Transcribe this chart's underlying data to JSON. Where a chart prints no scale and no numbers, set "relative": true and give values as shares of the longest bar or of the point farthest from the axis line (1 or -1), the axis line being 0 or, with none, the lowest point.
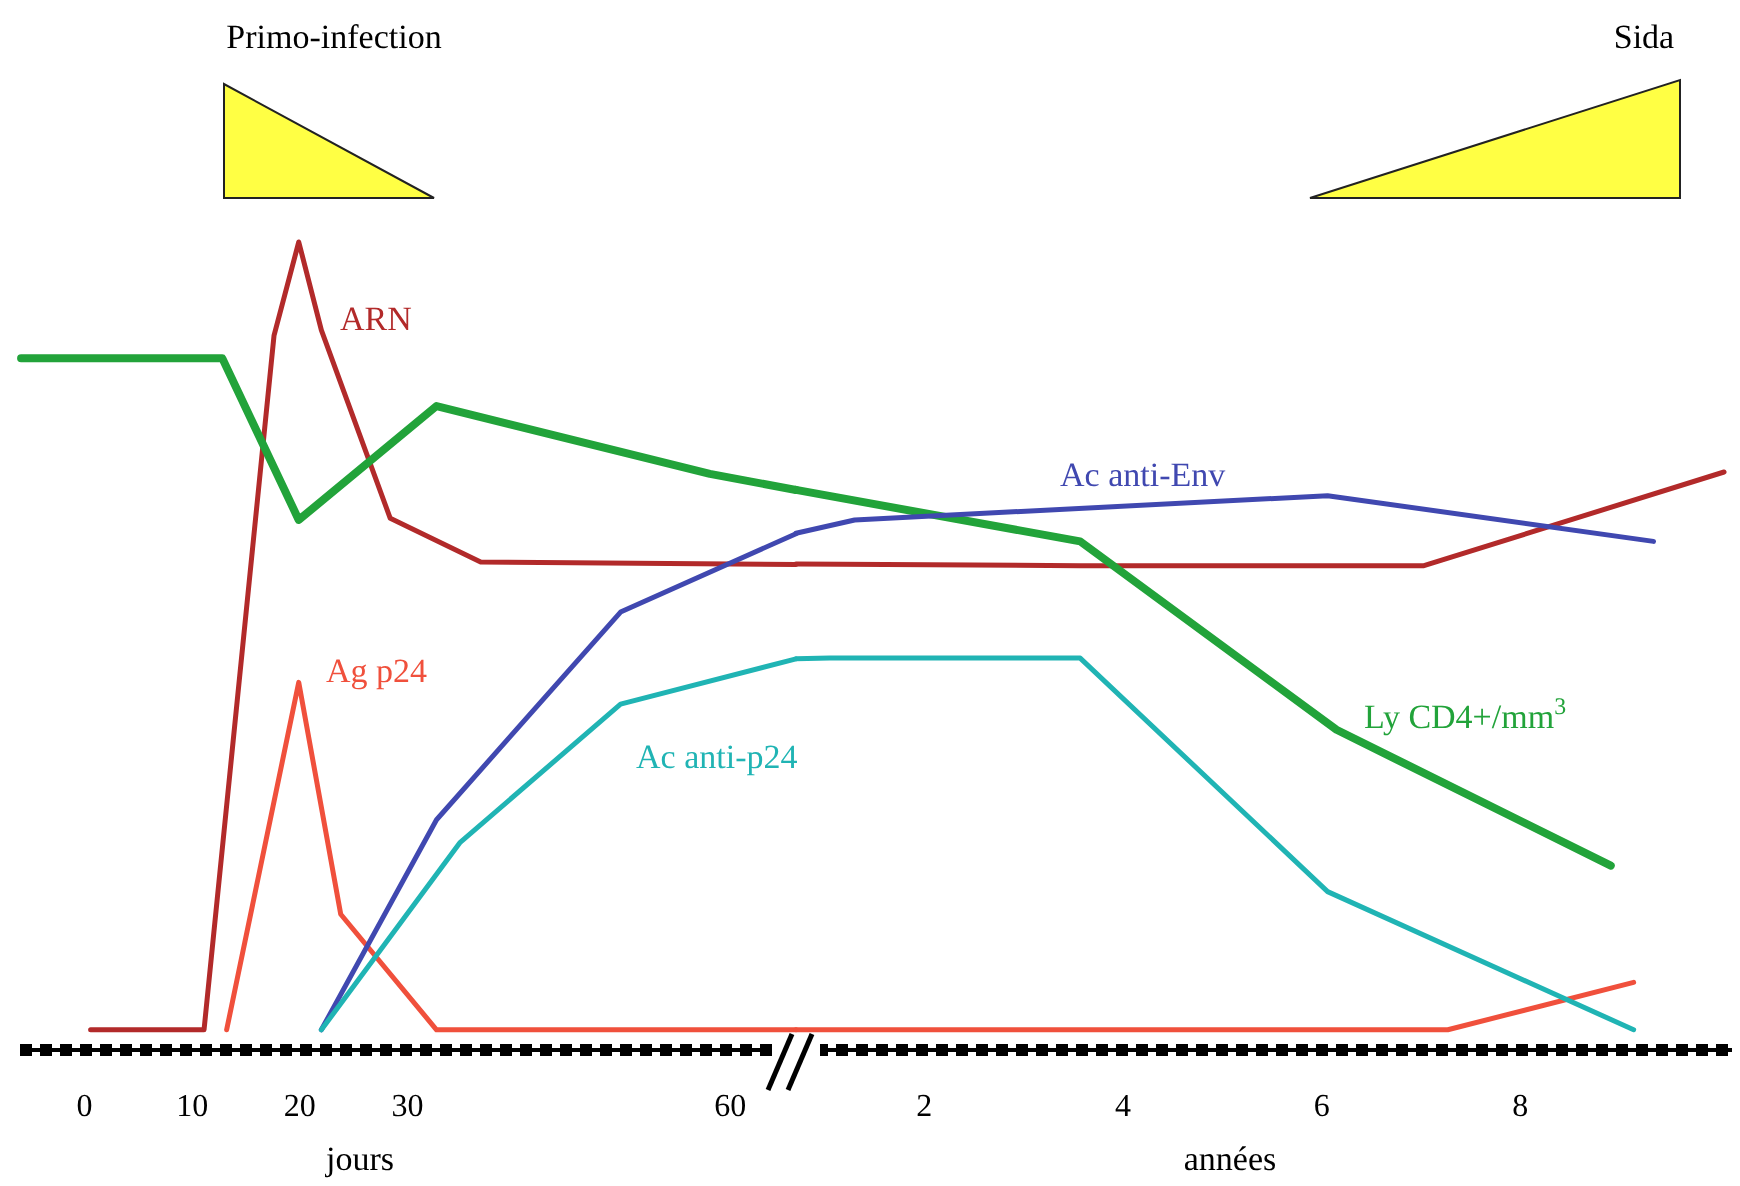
{
  "chart_data": [
    {
      "type": "line",
      "relative": true,
      "xlim": [
        -6,
        66.1
      ],
      "xticks": [
        0,
        10,
        20,
        30,
        60
      ],
      "xlabel": "jours",
      "annotations": [
        "Primo-infection"
      ],
      "series": [
        {
          "name": "ARN",
          "color": "#b22a2a",
          "x": [
            0.56,
            11.1,
            17.6,
            19.9,
            22.0,
            28.4,
            36.8,
            66.1
          ],
          "values": [
            0.025,
            0.025,
            0.884,
            1,
            0.891,
            0.658,
            0.604,
            0.601
          ]
        },
        {
          "name": "Ag p24",
          "color": "#f0503c",
          "x": [
            13.2,
            19.9,
            23.8,
            32.7,
            66.1
          ],
          "values": [
            0.025,
            0.455,
            0.168,
            0.025,
            0.025
          ]
        },
        {
          "color": "#22a33a",
          "x": [
            -5.9,
            12.8,
            19.9,
            32.7,
            58.1,
            66.1
          ],
          "values": [
            0.856,
            0.856,
            0.656,
            0.797,
            0.713,
            0.693
          ]
        },
        {
          "color": "#4048b0",
          "x": [
            22.0,
            32.7,
            49.8,
            66.1
          ],
          "values": [
            0.025,
            0.285,
            0.542,
            0.639
          ]
        },
        {
          "color": "#20b4b4",
          "x": [
            22.0,
            34.9,
            49.8,
            66.1
          ],
          "values": [
            0.025,
            0.257,
            0.428,
            0.484
          ]
        }
      ]
    },
    {
      "type": "line",
      "relative": true,
      "xlim": [
        0.71,
        10.13
      ],
      "xticks": [
        2,
        4,
        6,
        8
      ],
      "xlabel": "années",
      "annotations": [
        "Sida"
      ],
      "series": [
        {
          "color": "#b22a2a",
          "x": [
            0.71,
            3.57,
            7.03,
            10.05
          ],
          "values": [
            0.841,
            0.838,
            0.838,
            1
          ]
        },
        {
          "color": "#f0503c",
          "x": [
            0.71,
            7.27,
            9.14
          ],
          "values": [
            0.035,
            0.035,
            0.117
          ]
        },
        {
          "name": "Ly CD4+/mm$^{3}$",
          "color": "#22a33a",
          "x": [
            0.71,
            3.57,
            6.15,
            8.91
          ],
          "values": [
            0.969,
            0.88,
            0.554,
            0.319
          ]
        },
        {
          "name": "Ac anti-Env",
          "color": "#4048b0",
          "x": [
            0.71,
            1.3,
            6.06,
            9.34
          ],
          "values": [
            0.894,
            0.917,
            0.959,
            0.88
          ]
        },
        {
          "name": "Ac anti-p24",
          "color": "#20b4b4",
          "x": [
            0.71,
            1.05,
            3.57,
            6.06,
            9.14
          ],
          "values": [
            0.677,
            0.678,
            0.678,
            0.274,
            0.035
          ]
        }
      ]
    }
  ]
}
